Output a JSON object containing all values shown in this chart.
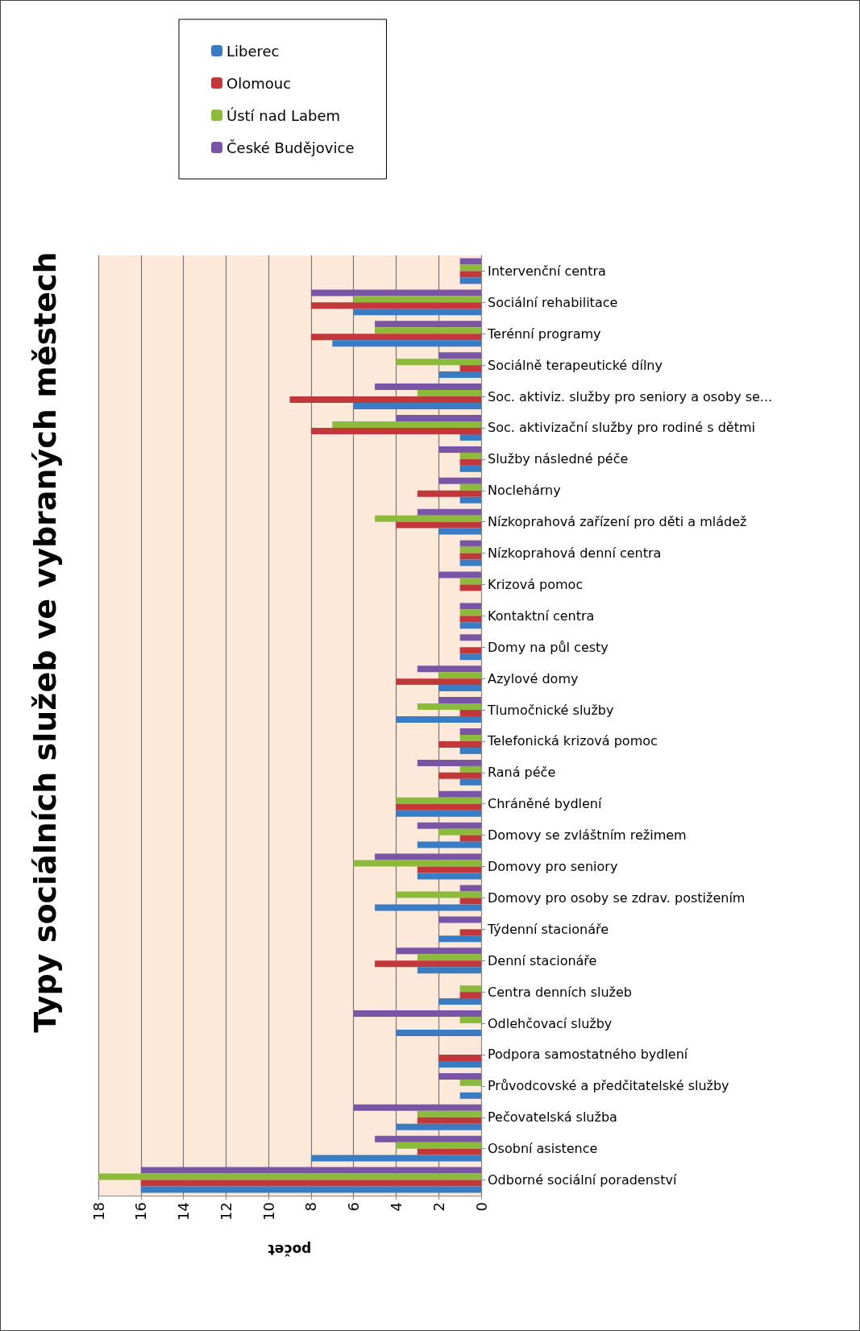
{
  "chart_data": {
    "type": "bar",
    "orientation": "horizontal",
    "title": "Typy sociálních služeb ve vybraných městech",
    "xlabel": "počet",
    "categories": [
      "Intervenční centra",
      "Sociální rehabilitace",
      "Terénní programy",
      "Sociálně terapeutické dílny",
      "Soc. aktiviz. služby pro seniory a osoby se...",
      "Soc. aktivizační služby pro rodiné s dětmi",
      "Služby následné péče",
      "Noclehárny",
      "Nízkoprahová zařízení pro děti a mládež",
      "Nízkoprahová denní centra",
      "Krizová pomoc",
      "Kontaktní centra",
      "Domy na půl cesty",
      "Azylové domy",
      "Tlumočnické služby",
      "Telefonická krizová pomoc",
      "Raná péče",
      "Chráněné bydlení",
      "Domovy se zvláštním režimem",
      "Domovy pro seniory",
      "Domovy pro osoby se zdrav. postižením",
      "Týdenní stacionáře",
      "Denní stacionáře",
      "Centra denních služeb",
      "Odlehčovací služby",
      "Podpora samostatného bydlení",
      "Průvodcovské a předčitatelské služby",
      "Pečovatelská služba",
      "Osobní asistence",
      "Odborné sociální poradenství"
    ],
    "series": [
      {
        "name": "České Budějovice",
        "color": "#7b55a5",
        "values": [
          1,
          8,
          5,
          2,
          5,
          4,
          2,
          2,
          3,
          1,
          2,
          1,
          1,
          3,
          2,
          1,
          3,
          2,
          3,
          5,
          1,
          2,
          4,
          0,
          6,
          0,
          2,
          6,
          5,
          16
        ]
      },
      {
        "name": "Ústí nad Labem",
        "color": "#8cbb3c",
        "values": [
          1,
          6,
          5,
          4,
          3,
          7,
          1,
          1,
          5,
          1,
          1,
          1,
          0,
          2,
          3,
          1,
          1,
          4,
          2,
          6,
          4,
          0,
          3,
          1,
          1,
          0,
          1,
          3,
          4,
          18
        ]
      },
      {
        "name": "Olomouc",
        "color": "#c0383a",
        "values": [
          1,
          8,
          8,
          1,
          9,
          8,
          1,
          3,
          4,
          1,
          1,
          1,
          1,
          4,
          1,
          2,
          2,
          4,
          1,
          3,
          1,
          1,
          5,
          1,
          0,
          2,
          0,
          3,
          3,
          16
        ]
      },
      {
        "name": "Liberec",
        "color": "#3a7cc3",
        "values": [
          1,
          6,
          7,
          2,
          6,
          1,
          1,
          1,
          2,
          1,
          0,
          1,
          1,
          2,
          4,
          1,
          1,
          4,
          3,
          3,
          5,
          2,
          3,
          2,
          4,
          2,
          1,
          4,
          8,
          16
        ]
      }
    ],
    "xlim": [
      18,
      0
    ],
    "xticks": [
      18,
      16,
      14,
      12,
      10,
      8,
      6,
      4,
      2,
      0
    ],
    "grid": "x",
    "legend": "top"
  }
}
